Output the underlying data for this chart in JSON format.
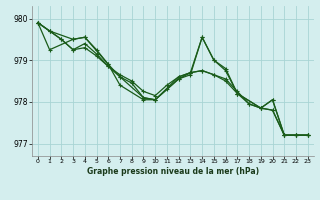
{
  "title": "Graphe pression niveau de la mer (hPa)",
  "background_color": "#d4eeee",
  "grid_color": "#a8d4d4",
  "line_color": "#1a5c1a",
  "xlim": [
    -0.5,
    23.5
  ],
  "ylim": [
    976.7,
    980.3
  ],
  "xticks": [
    0,
    1,
    2,
    3,
    4,
    5,
    6,
    7,
    8,
    9,
    10,
    11,
    12,
    13,
    14,
    15,
    16,
    17,
    18,
    19,
    20,
    21,
    22,
    23
  ],
  "yticks": [
    977,
    978,
    979,
    980
  ],
  "series": {
    "line1_x": [
      0,
      1,
      3,
      4,
      5,
      6,
      7,
      9,
      10,
      12,
      13,
      14,
      15,
      16,
      17,
      19,
      20,
      21,
      22,
      23
    ],
    "line1_y": [
      979.9,
      979.7,
      979.5,
      979.55,
      979.25,
      978.95,
      978.6,
      978.1,
      978.05,
      978.55,
      978.65,
      979.55,
      979.0,
      978.75,
      978.2,
      977.85,
      978.05,
      977.2,
      977.2,
      977.2
    ],
    "line2_x": [
      0,
      1,
      2,
      3,
      4,
      5,
      6,
      7,
      8,
      9,
      10,
      11,
      12,
      13,
      14,
      15,
      16,
      17,
      18,
      19,
      20,
      21,
      22,
      23
    ],
    "line2_y": [
      979.9,
      979.7,
      979.3,
      979.2,
      979.4,
      979.15,
      978.85,
      978.6,
      978.45,
      978.1,
      978.05,
      978.3,
      978.55,
      978.7,
      978.75,
      978.65,
      978.55,
      978.25,
      977.95,
      977.85,
      977.8,
      977.2,
      977.2,
      977.2
    ],
    "line3_x": [
      0,
      1,
      2,
      3,
      4,
      5,
      6,
      7,
      8,
      9,
      10,
      11,
      12,
      13,
      14,
      15,
      16,
      17,
      18,
      19,
      20,
      21,
      22,
      23
    ],
    "line3_y": [
      979.9,
      979.7,
      979.3,
      979.2,
      979.4,
      979.15,
      978.85,
      978.6,
      978.45,
      978.1,
      978.05,
      978.3,
      978.55,
      978.7,
      978.75,
      978.65,
      978.55,
      978.25,
      977.95,
      977.85,
      977.8,
      977.2,
      977.2,
      977.2
    ],
    "line4_x": [
      0,
      1,
      3,
      4,
      6,
      7,
      9,
      10,
      12,
      13,
      14,
      15,
      17,
      19,
      20,
      21,
      22,
      23
    ],
    "line4_y": [
      979.9,
      979.25,
      979.5,
      979.55,
      978.85,
      978.35,
      978.1,
      978.05,
      978.6,
      978.7,
      979.55,
      979.0,
      978.15,
      977.85,
      978.1,
      977.2,
      977.2,
      977.2
    ]
  }
}
